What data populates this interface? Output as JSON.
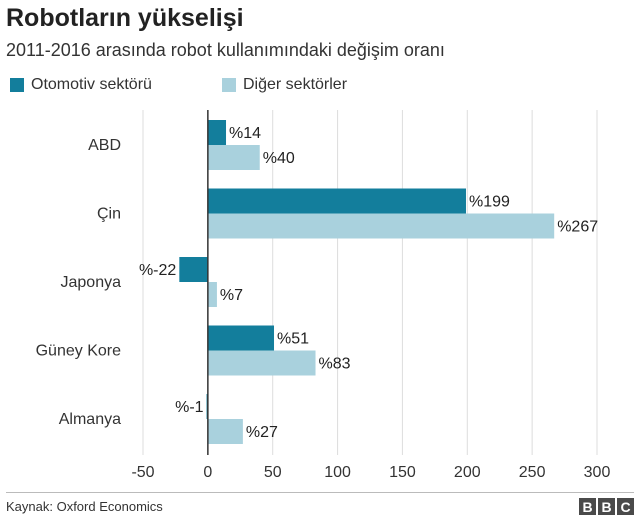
{
  "header": {
    "title": "Robotların yükselişi",
    "subtitle": "2011-2016 arasında robot kullanımındaki değişim oranı"
  },
  "footer": {
    "source": "Kaynak: Oxford Economics",
    "logo_letters": [
      "B",
      "B",
      "C"
    ]
  },
  "colors": {
    "automotive": "#137e9c",
    "other": "#a9d1dd",
    "grid": "#dddddd",
    "zero_line": "#333333"
  },
  "chart_data": {
    "type": "bar",
    "orientation": "horizontal",
    "title": "Robotların yükselişi",
    "subtitle": "2011-2016 arasında robot kullanımındaki değişim oranı",
    "categories": [
      "ABD",
      "Çin",
      "Japonya",
      "Güney Kore",
      "Almanya"
    ],
    "series": [
      {
        "name": "Otomotiv sektörü",
        "values": [
          14,
          199,
          -22,
          51,
          -1
        ],
        "labels": [
          "%14",
          "%199",
          "%-22",
          "%51",
          "%-1"
        ]
      },
      {
        "name": "Diğer sektörler",
        "values": [
          40,
          267,
          7,
          83,
          27
        ],
        "labels": [
          "%40",
          "%267",
          "%7",
          "%83",
          "%27"
        ]
      }
    ],
    "xlim": [
      -50,
      300
    ],
    "xticks": [
      -50,
      0,
      50,
      100,
      150,
      200,
      250,
      300
    ],
    "xtick_labels": [
      "-50",
      "0",
      "50",
      "100",
      "150",
      "200",
      "250",
      "300"
    ],
    "grid": true,
    "legend_position": "top-left"
  }
}
